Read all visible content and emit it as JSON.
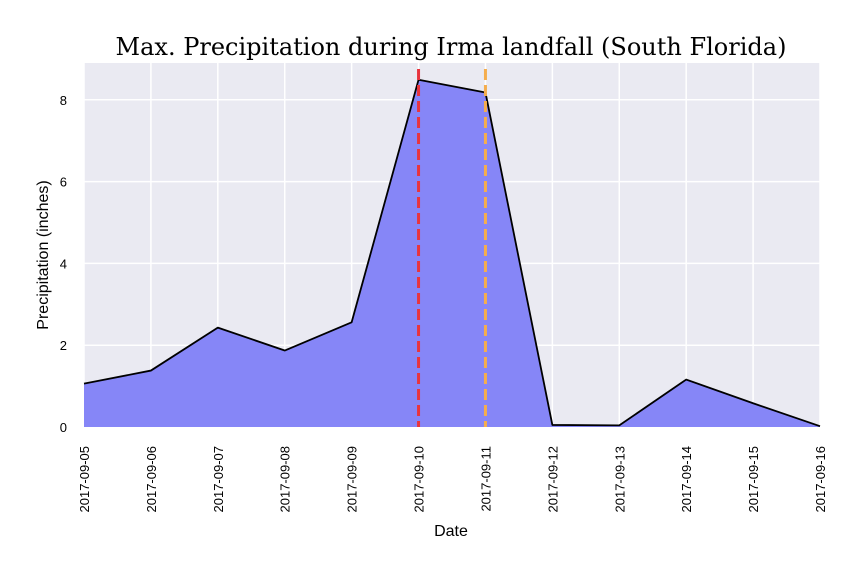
{
  "chart_data": {
    "type": "area",
    "title": "Max. Precipitation during Irma landfall (South Florida)",
    "xlabel": "Date",
    "ylabel": "Precipitation (inches)",
    "x": [
      "2017-09-05",
      "2017-09-06",
      "2017-09-07",
      "2017-09-08",
      "2017-09-09",
      "2017-09-10",
      "2017-09-11",
      "2017-09-12",
      "2017-09-13",
      "2017-09-14",
      "2017-09-15",
      "2017-09-16"
    ],
    "values": [
      1.06,
      1.38,
      2.43,
      1.87,
      2.56,
      8.49,
      8.18,
      0.05,
      0.04,
      1.16,
      0.58,
      0.02
    ],
    "ylim": [
      0,
      8.9
    ],
    "yticks": [
      0,
      2,
      4,
      6,
      8
    ],
    "grid": true,
    "fill_color": "#8686f7",
    "line_color": "#000000",
    "background_color": "#eaeaf2",
    "vlines": [
      {
        "x": "2017-09-10",
        "color": "#e8343e"
      },
      {
        "x": "2017-09-11",
        "color": "#f5ad4d"
      }
    ]
  }
}
